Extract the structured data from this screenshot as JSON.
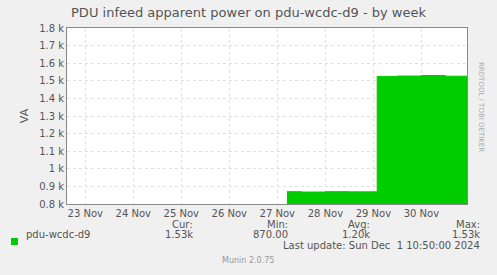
{
  "chart_data": {
    "type": "area",
    "title": "PDU infeed apparent power on pdu-wcdc-d9 - by week",
    "y_label": "VA",
    "x": [
      27.7,
      28.0,
      28.5,
      29.0,
      29.56,
      29.58,
      30.0,
      30.5,
      31.0,
      31.45
    ],
    "series": [
      {
        "name": "pdu-wcdc-d9",
        "color": "#00cc00",
        "values": [
          870,
          868,
          870,
          869,
          870,
          1525,
          1527,
          1530,
          1526,
          1528
        ]
      }
    ],
    "xlim": [
      23.12,
      31.45
    ],
    "xticks": [
      {
        "value": 23.5,
        "label": "23 Nov"
      },
      {
        "value": 24.5,
        "label": "24 Nov"
      },
      {
        "value": 25.5,
        "label": "25 Nov"
      },
      {
        "value": 26.5,
        "label": "26 Nov"
      },
      {
        "value": 27.5,
        "label": "27 Nov"
      },
      {
        "value": 28.5,
        "label": "28 Nov"
      },
      {
        "value": 29.5,
        "label": "29 Nov"
      },
      {
        "value": 30.5,
        "label": "30 Nov"
      }
    ],
    "ylim": [
      800,
      1800
    ],
    "yticks": [
      {
        "value": 800,
        "label": "0.8 k"
      },
      {
        "value": 900,
        "label": "0.9 k"
      },
      {
        "value": 1000,
        "label": "1 k"
      },
      {
        "value": 1100,
        "label": "1.1 k"
      },
      {
        "value": 1200,
        "label": "1.2 k"
      },
      {
        "value": 1300,
        "label": "1.3 k"
      },
      {
        "value": 1400,
        "label": "1.4 k"
      },
      {
        "value": 1500,
        "label": "1.5 k"
      },
      {
        "value": 1600,
        "label": "1.6 k"
      },
      {
        "value": 1700,
        "label": "1.7 k"
      },
      {
        "value": 1800,
        "label": "1.8 k"
      }
    ],
    "grid": true,
    "legend": "bottom",
    "legend_table": {
      "headers": [
        "Cur:",
        "Min:",
        "Avg:",
        "Max:"
      ],
      "values": [
        "1.53k",
        "870.00",
        "1.20k",
        "1.53k"
      ]
    },
    "footer": "Last update: Sun Dec  1 10:50:00 2024",
    "watermark": "RRDTOOL / TOBI OETIKER",
    "credit": "Munin 2.0.75"
  }
}
